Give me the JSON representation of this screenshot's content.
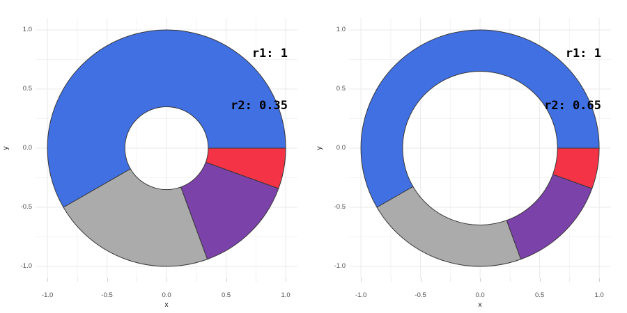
{
  "figure": {
    "background": "#ffffff",
    "description": "Two ggplot-style donut (pie) charts comparing inner radius r2=0.35 vs r2=0.65, same four segments"
  },
  "axes": {
    "x_label": "x",
    "y_label": "y",
    "x_ticks": [
      "-1.0",
      "-0.5",
      "0.0",
      "0.5",
      "1.0"
    ],
    "x_tick_values": [
      -1,
      -0.5,
      0,
      0.5,
      1
    ],
    "y_ticks": [
      "1.0",
      "0.5",
      "0.0",
      "-0.5",
      "-1.0"
    ],
    "y_tick_values": [
      1,
      0.5,
      0,
      -0.5,
      -1
    ],
    "minor_tick_values": [
      -0.75,
      -0.25,
      0.25,
      0.75
    ],
    "range": [
      -1.1,
      1.1
    ]
  },
  "style": {
    "major_grid": "#e9e9e9",
    "minor_grid": "#f4f4f4",
    "major_tick_mark": "#cfcfcf",
    "minor_tick_mark": "#e8e8e8",
    "segment_stroke": "#373737",
    "tick_label_color": "#4d4d4d",
    "annotation_color": "#000000"
  },
  "chart_data": [
    {
      "type": "pie",
      "variant": "donut",
      "panel": "left",
      "title_annotation": {
        "line1": "r1: 1",
        "line2": "r2: 0.35"
      },
      "outer_radius": 1,
      "inner_radius": 0.35,
      "start_angle_deg": 0,
      "direction": "clockwise",
      "segments": [
        {
          "name": "red",
          "fraction": 0.056,
          "angle_span_deg": 20,
          "color": "#f43347"
        },
        {
          "name": "purple",
          "fraction": 0.139,
          "angle_span_deg": 50,
          "color": "#7b42a9"
        },
        {
          "name": "gray",
          "fraction": 0.222,
          "angle_span_deg": 80,
          "color": "#ababab"
        },
        {
          "name": "blue",
          "fraction": 0.583,
          "angle_span_deg": 210,
          "color": "#4170e3"
        }
      ],
      "xlabel": "x",
      "ylabel": "y",
      "xlim": [
        -1.1,
        1.1
      ],
      "ylim": [
        -1.1,
        1.1
      ],
      "grid": true,
      "legend": false
    },
    {
      "type": "pie",
      "variant": "donut",
      "panel": "right",
      "title_annotation": {
        "line1": "r1: 1",
        "line2": "r2: 0.65"
      },
      "outer_radius": 1,
      "inner_radius": 0.65,
      "start_angle_deg": 0,
      "direction": "clockwise",
      "segments": [
        {
          "name": "red",
          "fraction": 0.056,
          "angle_span_deg": 20,
          "color": "#f43347"
        },
        {
          "name": "purple",
          "fraction": 0.139,
          "angle_span_deg": 50,
          "color": "#7b42a9"
        },
        {
          "name": "gray",
          "fraction": 0.222,
          "angle_span_deg": 80,
          "color": "#ababab"
        },
        {
          "name": "blue",
          "fraction": 0.583,
          "angle_span_deg": 210,
          "color": "#4170e3"
        }
      ],
      "xlabel": "x",
      "ylabel": "y",
      "xlim": [
        -1.1,
        1.1
      ],
      "ylim": [
        -1.1,
        1.1
      ],
      "grid": true,
      "legend": false
    }
  ]
}
